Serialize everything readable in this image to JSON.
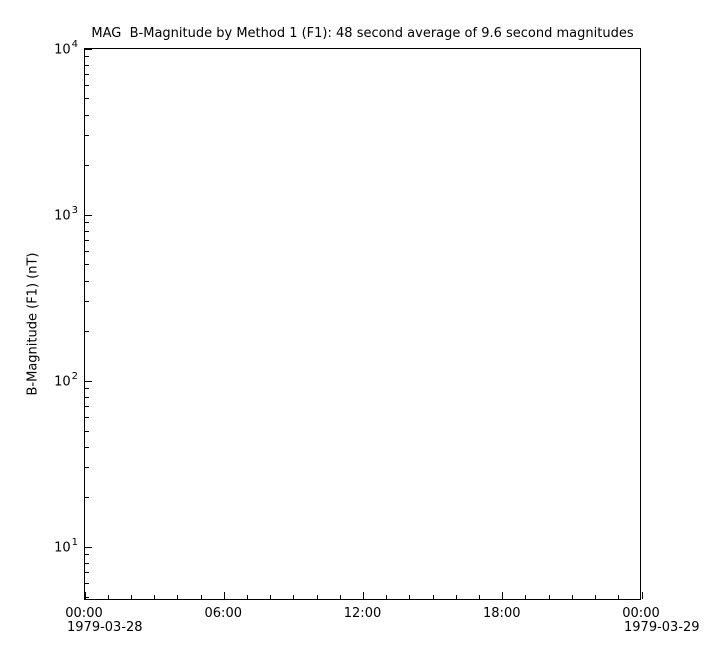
{
  "figure": {
    "background_color": "#ffffff",
    "foreground_color": "#000000"
  },
  "chart_data": {
    "type": "line",
    "title": "MAG  B-Magnitude by Method 1 (F1): 48 second average of 9.6 second magnitudes",
    "xlabel": "",
    "ylabel": "B-Magnitude (F1) (nT)",
    "grid": false,
    "legend": null,
    "series": [],
    "x_axis": {
      "scale": "time",
      "range_hours": [
        0,
        24
      ],
      "major_tick_hours": [
        0,
        6,
        12,
        18,
        24
      ],
      "major_tick_labels": [
        "00:00",
        "06:00",
        "12:00",
        "18:00",
        "00:00"
      ],
      "minor_tick_interval_hours": 1,
      "date_labels": [
        {
          "hour": 0,
          "text": "1979-03-28"
        },
        {
          "hour": 24,
          "text": "1979-03-29"
        }
      ]
    },
    "y_axis": {
      "scale": "log",
      "log_range": [
        0.675,
        4.0
      ],
      "major_ticks": [
        10,
        100,
        1000,
        10000
      ],
      "major_tick_exponents": [
        4,
        3,
        2,
        1
      ],
      "major_tick_label_base": "10",
      "minor_multiples": [
        2,
        3,
        4,
        5,
        6,
        7,
        8,
        9
      ]
    }
  }
}
